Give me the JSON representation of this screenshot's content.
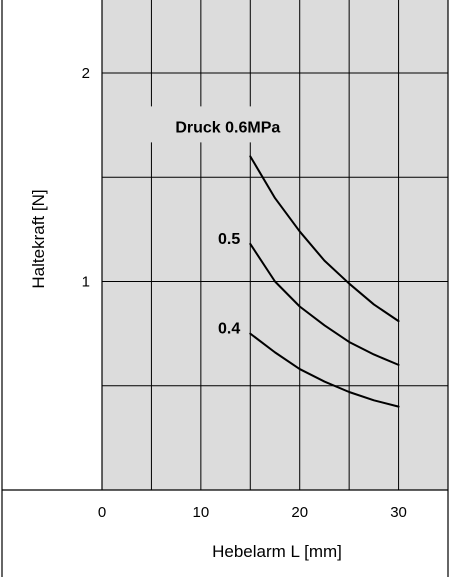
{
  "chart_data": {
    "type": "line",
    "title": "",
    "xlabel": "Hebelarm L  [mm]",
    "ylabel": "Haltekraft  [N]",
    "xlim": [
      0,
      35
    ],
    "ylim": [
      0,
      2.35
    ],
    "xticks": [
      0,
      10,
      20,
      30
    ],
    "xtick_labels": [
      "0",
      "10",
      "20",
      "30"
    ],
    "yticks": [
      1,
      2
    ],
    "ytick_labels": [
      "1",
      "2"
    ],
    "x_grid": [
      5,
      10,
      15,
      20,
      25,
      30
    ],
    "y_grid": [
      0.5,
      1,
      1.5,
      2
    ],
    "grid": true,
    "background": "#dcdcdc",
    "line_color": "#000000",
    "series": [
      {
        "name": "Druck 0.6MPa",
        "x": [
          15,
          17.5,
          20,
          22.5,
          25,
          27.5,
          30
        ],
        "y": [
          1.6,
          1.4,
          1.24,
          1.1,
          0.99,
          0.89,
          0.81
        ]
      },
      {
        "name": "0.5",
        "x": [
          15,
          17.5,
          20,
          22.5,
          25,
          27.5,
          30
        ],
        "y": [
          1.18,
          1.0,
          0.88,
          0.79,
          0.71,
          0.65,
          0.6
        ]
      },
      {
        "name": "0.4",
        "x": [
          15,
          17.5,
          20,
          22.5,
          25,
          27.5,
          30
        ],
        "y": [
          0.75,
          0.66,
          0.58,
          0.52,
          0.47,
          0.43,
          0.4
        ]
      }
    ]
  }
}
